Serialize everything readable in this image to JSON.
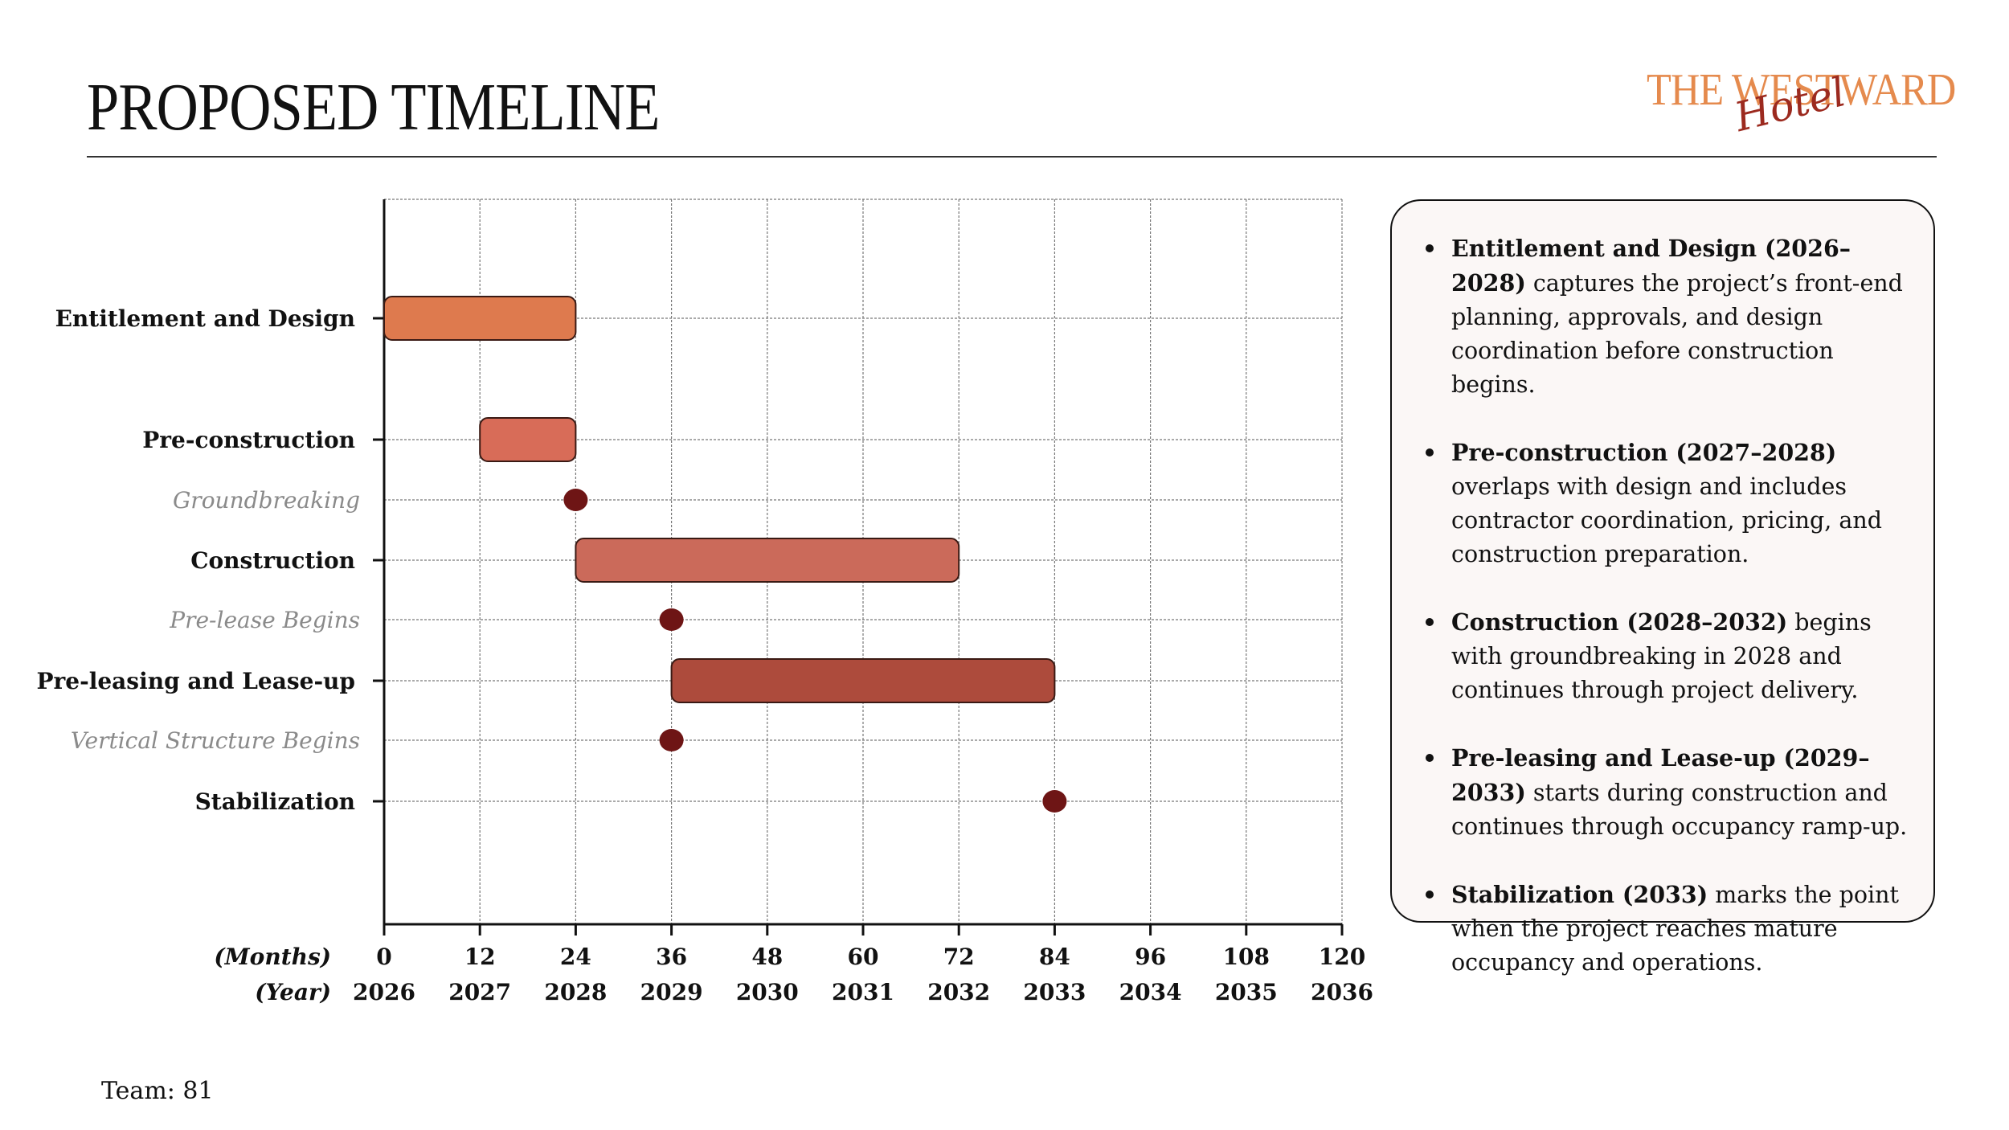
{
  "title": "PROPOSED TIMELINE",
  "logo": {
    "line1": "THE WESTWARD",
    "line2": "Hotel"
  },
  "footer": {
    "team_label": "Team: 81"
  },
  "colors": {
    "entitlement": "#de7a4e",
    "preconstruction": "#d86c58",
    "construction": "#cb6a5a",
    "preleasing": "#ad4b3c",
    "milestone": "#6e1515",
    "task_label": "#111111",
    "milestone_label": "#8a8a8a",
    "grid": "#777777"
  },
  "chart_data": {
    "type": "gantt",
    "title": "",
    "xlabel": "(Months)",
    "x2label": "(Year)",
    "xlim": [
      0,
      120
    ],
    "x_ticks": [
      0,
      12,
      24,
      36,
      48,
      60,
      72,
      84,
      96,
      108,
      120
    ],
    "year_ticks": [
      "2026",
      "2027",
      "2028",
      "2029",
      "2030",
      "2031",
      "2032",
      "2033",
      "2034",
      "2035",
      "2036"
    ],
    "grid": true,
    "rows": [
      {
        "label": "Entitlement and Design",
        "kind": "task",
        "start": 0,
        "end": 24,
        "color_key": "entitlement"
      },
      {
        "label": "Pre-construction",
        "kind": "task",
        "start": 12,
        "end": 24,
        "color_key": "preconstruction"
      },
      {
        "label": "Groundbreaking",
        "kind": "milestone",
        "at": 24
      },
      {
        "label": "Construction",
        "kind": "task",
        "start": 24,
        "end": 72,
        "color_key": "construction"
      },
      {
        "label": "Pre-lease Begins",
        "kind": "milestone",
        "at": 36
      },
      {
        "label": "Pre-leasing and Lease-up",
        "kind": "task",
        "start": 36,
        "end": 84,
        "color_key": "preleasing"
      },
      {
        "label": "Vertical Structure Begins",
        "kind": "milestone",
        "at": 36
      },
      {
        "label": "Stabilization",
        "kind": "task-milestone",
        "at": 84
      }
    ]
  },
  "notes": [
    {
      "bold": "Entitlement and Design (2026–2028)",
      "text": " captures the project’s front-end planning, approvals, and design coordination before construction begins."
    },
    {
      "bold": "Pre-construction (2027–2028)",
      "text": " overlaps with design and includes contractor coordination, pricing, and construction preparation."
    },
    {
      "bold": "Construction (2028–2032)",
      "text": " begins with groundbreaking in 2028 and continues through project delivery."
    },
    {
      "bold": "Pre-leasing and Lease-up (2029–2033)",
      "text": " starts during construction and continues through occupancy ramp-up."
    },
    {
      "bold": "Stabilization (2033)",
      "text": " marks the point when the project reaches mature occupancy and operations."
    }
  ]
}
